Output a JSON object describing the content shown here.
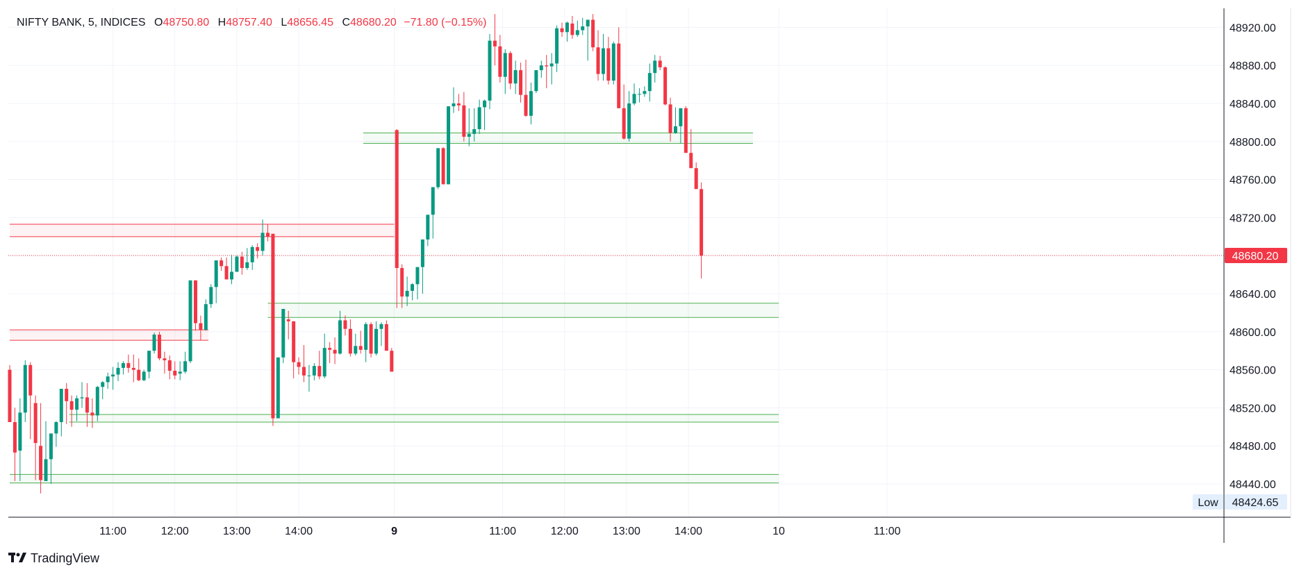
{
  "legend": {
    "symbol": "NIFTY BANK, 5, INDICES",
    "open_label": "O",
    "open": "48750.80",
    "high_label": "H",
    "high": "48757.40",
    "low_label": "L",
    "low": "48656.45",
    "close_label": "C",
    "close": "48680.20",
    "change": "−71.80 (−0.15%)"
  },
  "brand": {
    "name": "TradingView"
  },
  "price_axis": {
    "last_price_label": "48680.20",
    "low_tag_label": "Low",
    "low_tag_value": "48424.65"
  },
  "colors": {
    "up": "#089981",
    "down": "#f23645",
    "zone_green": "#4caf50",
    "zone_red": "#f23645",
    "grid": "#f0f3fa",
    "axis": "#131722"
  },
  "chart_data": {
    "type": "candlestick",
    "title": "NIFTY BANK, 5, INDICES",
    "ylim": [
      48405,
      48940
    ],
    "yticks": [
      48440,
      48480,
      48520,
      48560,
      48600,
      48640,
      48680,
      48720,
      48760,
      48800,
      48840,
      48880,
      48920
    ],
    "ytick_labels": [
      "48440.00",
      "48480.00",
      "48520.00",
      "48560.00",
      "48600.00",
      "48640.00",
      "48680.00",
      "48720.00",
      "48760.00",
      "48800.00",
      "48840.00",
      "48880.00",
      "48920.00"
    ],
    "xtick_labels": [
      {
        "label": "11:00",
        "bar": 20
      },
      {
        "label": "12:00",
        "bar": 32
      },
      {
        "label": "13:00",
        "bar": 44
      },
      {
        "label": "14:00",
        "bar": 56
      },
      {
        "label": "9",
        "bar": 74.5,
        "bold": true
      },
      {
        "label": "11:00",
        "bar": 95.5
      },
      {
        "label": "12:00",
        "bar": 107.5
      },
      {
        "label": "13:00",
        "bar": 119.5
      },
      {
        "label": "14:00",
        "bar": 131.5
      },
      {
        "label": "10",
        "bar": 149
      },
      {
        "label": "11:00",
        "bar": 170
      }
    ],
    "last_price": 48680.2,
    "low_marker": 48424.65,
    "zones": [
      {
        "color": "red",
        "top": 48713,
        "bottom": 48700,
        "from": 0,
        "to": 74.5
      },
      {
        "color": "red",
        "top": 48602,
        "bottom": 48591,
        "from": 0,
        "to": 38.5
      },
      {
        "color": "green",
        "top": 48809,
        "bottom": 48798,
        "from": 68.5,
        "to": 144
      },
      {
        "color": "green",
        "top": 48630,
        "bottom": 48615,
        "from": 50,
        "to": 149
      },
      {
        "color": "green",
        "top": 48513,
        "bottom": 48505,
        "from": 11.5,
        "to": 149
      },
      {
        "color": "green",
        "top": 48450,
        "bottom": 48441,
        "from": 0,
        "to": 149
      }
    ],
    "series": [
      {
        "name": "NIFTY BANK",
        "columns": [
          "bar",
          "open",
          "high",
          "low",
          "close"
        ],
        "values": [
          [
            0,
            48560,
            48565,
            48505,
            48505
          ],
          [
            1,
            48505,
            48520,
            48443,
            48473
          ],
          [
            2,
            48475,
            48530,
            48443,
            48515
          ],
          [
            3,
            48515,
            48570,
            48505,
            48565
          ],
          [
            4,
            48565,
            48568,
            48487,
            48533
          ],
          [
            5,
            48525,
            48533,
            48444,
            48483
          ],
          [
            6,
            48480,
            48525,
            48430,
            48444
          ],
          [
            7,
            48443,
            48506,
            48443,
            48466
          ],
          [
            8,
            48466,
            48493,
            48440,
            48493
          ],
          [
            9,
            48493,
            48506,
            48479,
            48505
          ],
          [
            10,
            48505,
            48540,
            48490,
            48540
          ],
          [
            11,
            48540,
            48546,
            48503,
            48527
          ],
          [
            12,
            48527,
            48533,
            48500,
            48518
          ],
          [
            13,
            48518,
            48533,
            48506,
            48530
          ],
          [
            14,
            48530,
            48547,
            48520,
            48531
          ],
          [
            15,
            48531,
            48546,
            48500,
            48515
          ],
          [
            16,
            48515,
            48530,
            48499,
            48512
          ],
          [
            17,
            48512,
            48543,
            48506,
            48542
          ],
          [
            18,
            48542,
            48548,
            48529,
            48547
          ],
          [
            19,
            48547,
            48557,
            48540,
            48553
          ],
          [
            20,
            48553,
            48563,
            48539,
            48555
          ],
          [
            21,
            48555,
            48568,
            48548,
            48562
          ],
          [
            22,
            48562,
            48569,
            48555,
            48567
          ],
          [
            23,
            48567,
            48576,
            48557,
            48562
          ],
          [
            24,
            48562,
            48576,
            48547,
            48560
          ],
          [
            25,
            48560,
            48572,
            48548,
            48549
          ],
          [
            26,
            48549,
            48560,
            48548,
            48558
          ],
          [
            27,
            48558,
            48580,
            48551,
            48580
          ],
          [
            28,
            48580,
            48599,
            48577,
            48597
          ],
          [
            29,
            48597,
            48600,
            48570,
            48572
          ],
          [
            30,
            48572,
            48579,
            48556,
            48570
          ],
          [
            31,
            48570,
            48575,
            48550,
            48559
          ],
          [
            32,
            48559,
            48569,
            48550,
            48554
          ],
          [
            33,
            48556,
            48569,
            48549,
            48558
          ],
          [
            34,
            48558,
            48579,
            48556,
            48569
          ],
          [
            35,
            48569,
            48645,
            48567,
            48654
          ],
          [
            36,
            48654,
            48654,
            48601,
            48609
          ],
          [
            37,
            48609,
            48617,
            48591,
            48602
          ],
          [
            38,
            48602,
            48634,
            48601,
            48629
          ],
          [
            39,
            48629,
            48650,
            48625,
            48647
          ],
          [
            40,
            48647,
            48675,
            48630,
            48675
          ],
          [
            41,
            48675,
            48678,
            48664,
            48669
          ],
          [
            42,
            48669,
            48678,
            48655,
            48655
          ],
          [
            43,
            48655,
            48681,
            48650,
            48663
          ],
          [
            44,
            48663,
            48680,
            48663,
            48679
          ],
          [
            45,
            48679,
            48684,
            48660,
            48667
          ],
          [
            46,
            48667,
            48688,
            48665,
            48673
          ],
          [
            47,
            48673,
            48691,
            48665,
            48689
          ],
          [
            48,
            48689,
            48693,
            48677,
            48685
          ],
          [
            49,
            48685,
            48718,
            48680,
            48704
          ],
          [
            50,
            48704,
            48713,
            48695,
            48700
          ],
          [
            51,
            48703,
            48703,
            48501,
            48509
          ],
          [
            52,
            48509,
            48573,
            48509,
            48573
          ],
          [
            53,
            48573,
            48624,
            48567,
            48624
          ],
          [
            54,
            48613,
            48622,
            48592,
            48611
          ],
          [
            55,
            48611,
            48611,
            48551,
            48568
          ],
          [
            56,
            48568,
            48573,
            48555,
            48563
          ],
          [
            57,
            48563,
            48586,
            48547,
            48554
          ],
          [
            58,
            48554,
            48565,
            48537,
            48554
          ],
          [
            59,
            48554,
            48567,
            48549,
            48564
          ],
          [
            60,
            48564,
            48580,
            48550,
            48553
          ],
          [
            61,
            48553,
            48598,
            48551,
            48583
          ],
          [
            62,
            48583,
            48589,
            48567,
            48581
          ],
          [
            63,
            48581,
            48594,
            48566,
            48577
          ],
          [
            64,
            48577,
            48622,
            48576,
            48612
          ],
          [
            65,
            48612,
            48617,
            48596,
            48603
          ],
          [
            66,
            48603,
            48613,
            48574,
            48577
          ],
          [
            67,
            48577,
            48598,
            48575,
            48585
          ],
          [
            68,
            48585,
            48601,
            48577,
            48581
          ],
          [
            69,
            48581,
            48610,
            48568,
            48608
          ],
          [
            70,
            48608,
            48610,
            48573,
            48577
          ],
          [
            71,
            48577,
            48611,
            48575,
            48603
          ],
          [
            72,
            48603,
            48610,
            48585,
            48608
          ],
          [
            73,
            48608,
            48612,
            48590,
            48580
          ],
          [
            74,
            48580,
            48583,
            48560,
            48558
          ],
          [
            75,
            48812,
            48813,
            48625,
            48667
          ],
          [
            76,
            48667,
            48671,
            48625,
            48637
          ],
          [
            77,
            48637,
            48658,
            48627,
            48643
          ],
          [
            78,
            48643,
            48651,
            48633,
            48650
          ],
          [
            79,
            48650,
            48665,
            48634,
            48668
          ],
          [
            80,
            48668,
            48697,
            48640,
            48697
          ],
          [
            81,
            48697,
            48720,
            48690,
            48723
          ],
          [
            82,
            48723,
            48752,
            48698,
            48752
          ],
          [
            83,
            48752,
            48793,
            48750,
            48793
          ],
          [
            84,
            48793,
            48794,
            48755,
            48755
          ],
          [
            85,
            48755,
            48837,
            48755,
            48837
          ],
          [
            86,
            48837,
            48857,
            48830,
            48840
          ],
          [
            87,
            48840,
            48850,
            48832,
            48838
          ],
          [
            88,
            48838,
            48852,
            48800,
            48805
          ],
          [
            89,
            48805,
            48835,
            48795,
            48808
          ],
          [
            90,
            48808,
            48835,
            48800,
            48813
          ],
          [
            91,
            48813,
            48844,
            48808,
            48836
          ],
          [
            92,
            48836,
            48844,
            48812,
            48843
          ],
          [
            93,
            48843,
            48913,
            48834,
            48906
          ],
          [
            94,
            48906,
            48934,
            48880,
            48900
          ],
          [
            95,
            48900,
            48912,
            48862,
            48868
          ],
          [
            96,
            48868,
            48897,
            48850,
            48893
          ],
          [
            97,
            48893,
            48895,
            48855,
            48861
          ],
          [
            98,
            48861,
            48885,
            48850,
            48875
          ],
          [
            99,
            48875,
            48883,
            48841,
            48849
          ],
          [
            100,
            48849,
            48886,
            48826,
            48827
          ],
          [
            101,
            48827,
            48862,
            48818,
            48853
          ],
          [
            102,
            48853,
            48875,
            48851,
            48875
          ],
          [
            103,
            48875,
            48885,
            48867,
            48880
          ],
          [
            104,
            48880,
            48891,
            48856,
            48879
          ],
          [
            105,
            48879,
            48893,
            48860,
            48882
          ],
          [
            106,
            48882,
            48922,
            48873,
            48919
          ],
          [
            107,
            48919,
            48925,
            48910,
            48915
          ],
          [
            108,
            48915,
            48926,
            48905,
            48925
          ],
          [
            109,
            48924,
            48932,
            48908,
            48912
          ],
          [
            110,
            48912,
            48927,
            48910,
            48917
          ],
          [
            111,
            48917,
            48930,
            48912,
            48921
          ],
          [
            112,
            48921,
            48922,
            48885,
            48928
          ],
          [
            113,
            48928,
            48934,
            48895,
            48899
          ],
          [
            114,
            48899,
            48917,
            48864,
            48871
          ],
          [
            115,
            48871,
            48913,
            48864,
            48898
          ],
          [
            116,
            48898,
            48910,
            48860,
            48864
          ],
          [
            117,
            48864,
            48905,
            48860,
            48903
          ],
          [
            118,
            48903,
            48920,
            48835,
            48835
          ],
          [
            119,
            48835,
            48860,
            48802,
            48803
          ],
          [
            120,
            48803,
            48853,
            48800,
            48840
          ],
          [
            121,
            48840,
            48861,
            48838,
            48850
          ],
          [
            122,
            48850,
            48856,
            48841,
            48850
          ],
          [
            123,
            48850,
            48858,
            48847,
            48853
          ],
          [
            124,
            48853,
            48882,
            48842,
            48872
          ],
          [
            125,
            48872,
            48891,
            48862,
            48885
          ],
          [
            126,
            48885,
            48890,
            48875,
            48878
          ],
          [
            127,
            48878,
            48879,
            48838,
            48839
          ],
          [
            128,
            48839,
            48846,
            48800,
            48809
          ],
          [
            129,
            48809,
            48836,
            48808,
            48816
          ],
          [
            130,
            48816,
            48835,
            48798,
            48835
          ],
          [
            131,
            48835,
            48837,
            48810,
            48788
          ],
          [
            132,
            48788,
            48813,
            48772,
            48772
          ],
          [
            133,
            48772,
            48778,
            48750,
            48750
          ],
          [
            134,
            48750,
            48757,
            48656,
            48680
          ]
        ]
      }
    ]
  }
}
